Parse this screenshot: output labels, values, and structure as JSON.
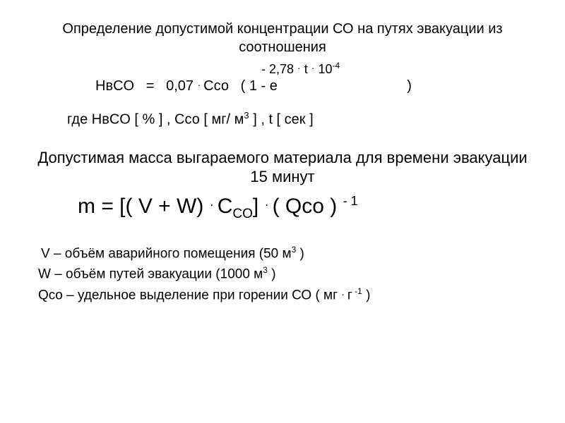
{
  "title": "Определение допустимой концентрации СО на путях эвакуации из соотношения",
  "exponent": {
    "prefix": "- 2,78",
    "t": "t",
    "tenexp": "10",
    "expnum": "-4"
  },
  "formula1": {
    "lhs": "HвCO",
    "eq": "=",
    "coef": "0,07",
    "cco": "Ссо",
    "open": "( 1  -  e",
    "close": ")"
  },
  "units_line": {
    "gde": "где   HвCO  [ % ] , Ссо  [ мг/ м",
    "m3exp": "3",
    "rest": " ] ,  t  [ сек ]"
  },
  "subtitle": "Допустимая масса выгараемого материала для времени эвакуации 15 минут",
  "formula2": {
    "m": "m = [( V + W)",
    "C": "C",
    "COsub": "CO",
    "close": "]",
    "Qco": "( Qco )",
    "negone": "- 1"
  },
  "defs": {
    "V": {
      "a": " V – объём аварийного помещения (50 м",
      "exp": "3",
      "b": " )"
    },
    "W": {
      "a": "W – объём путей эвакуации (1000 м",
      "exp": "3",
      "b": " )"
    },
    "Q": {
      "a": "Qco – удельное выделение при горении СО ( мг",
      "mid": "г",
      "exp": " -1",
      "b": " )"
    }
  }
}
